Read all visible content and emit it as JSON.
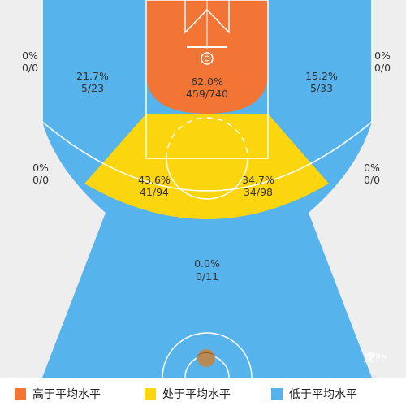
{
  "colors": {
    "above": "#F27535",
    "average": "#FBD50E",
    "below": "#56B3EC",
    "out_of_bounds": "#EEEEEE",
    "court_lines": "#FFFFFF"
  },
  "zones": {
    "restricted": {
      "pct": "62.0%",
      "ratio": "459/740"
    },
    "left_corner": {
      "pct": "0%",
      "ratio": "0/0"
    },
    "right_corner": {
      "pct": "0%",
      "ratio": "0/0"
    },
    "left_wing_three": {
      "pct": "21.7%",
      "ratio": "5/23"
    },
    "right_wing_three": {
      "pct": "15.2%",
      "ratio": "5/33"
    },
    "left_baseline_mid": {
      "pct": "0%",
      "ratio": "0/0"
    },
    "right_baseline_mid": {
      "pct": "0%",
      "ratio": "0/0"
    },
    "left_midrange": {
      "pct": "43.6%",
      "ratio": "41/94"
    },
    "right_midrange": {
      "pct": "34.7%",
      "ratio": "34/98"
    },
    "top_three": {
      "pct": "0.0%",
      "ratio": "0/11"
    }
  },
  "legend": [
    {
      "label": "高于平均水平",
      "color": "#F27535"
    },
    {
      "label": "处于平均水平",
      "color": "#FBD50E"
    },
    {
      "label": "低于平均水平",
      "color": "#56B3EC"
    }
  ],
  "watermark": "虎扑"
}
